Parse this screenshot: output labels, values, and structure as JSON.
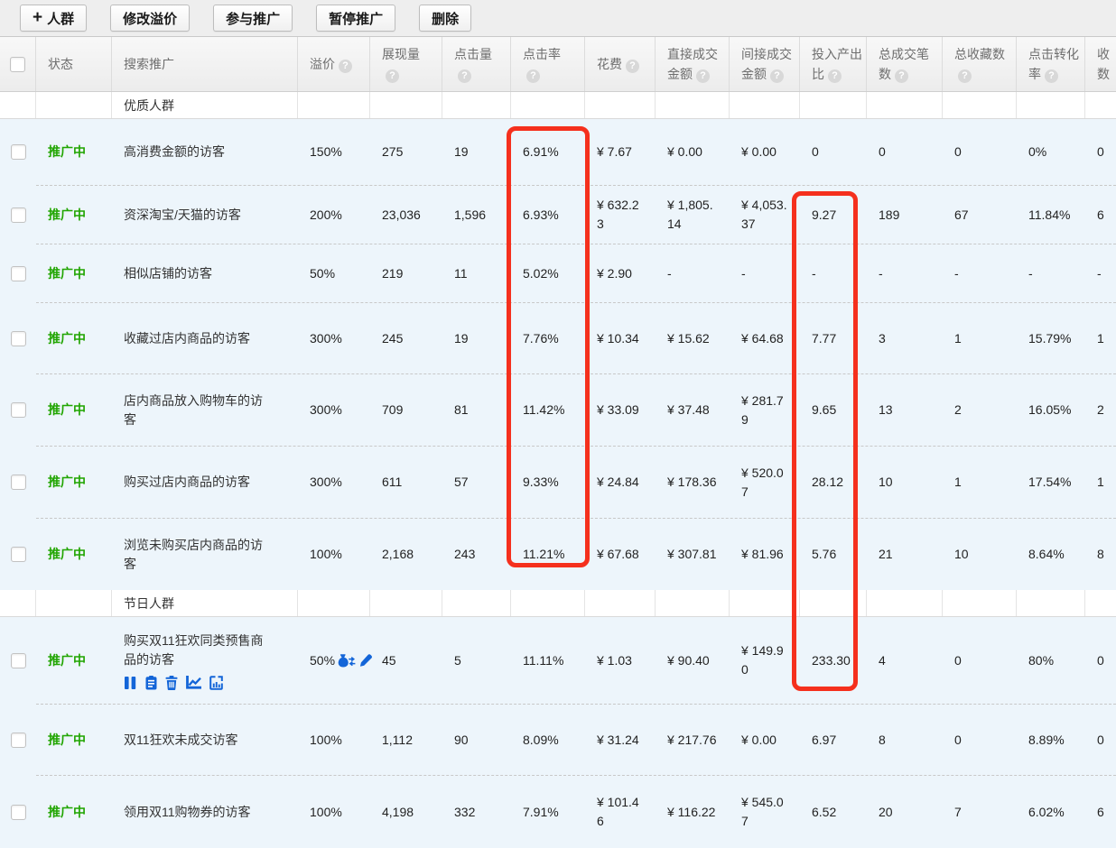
{
  "toolbar": {
    "buttons": [
      {
        "id": "add-crowd",
        "label": "人群",
        "icon": "plus"
      },
      {
        "id": "modify-premium",
        "label": "修改溢价"
      },
      {
        "id": "join-promotion",
        "label": "参与推广"
      },
      {
        "id": "pause-promotion",
        "label": "暂停推广"
      },
      {
        "id": "delete",
        "label": "删除"
      }
    ]
  },
  "icons": {
    "plus": "+",
    "help": "?",
    "row_action_icons": [
      "pause",
      "note",
      "delete",
      "trend",
      "report"
    ],
    "premium_icons": [
      "money-bag",
      "edit"
    ]
  },
  "table": {
    "columns": [
      {
        "key": "check"
      },
      {
        "key": "status",
        "l1": "状态"
      },
      {
        "key": "name",
        "l1": "搜索推广"
      },
      {
        "key": "premium",
        "l1": "溢价",
        "helpLine": 1
      },
      {
        "key": "impressions",
        "l1": "展现量",
        "l2": "",
        "helpLine": 2
      },
      {
        "key": "clicks",
        "l1": "点击量",
        "l2": "",
        "helpLine": 2
      },
      {
        "key": "ctr",
        "l1": "点击率",
        "l2": "",
        "helpLine": 2
      },
      {
        "key": "cost",
        "l1": "花费",
        "helpLine": 1
      },
      {
        "key": "direct",
        "l1": "直接成交",
        "l2": "金额",
        "helpLine": 2
      },
      {
        "key": "indirect",
        "l1": "间接成交",
        "l2": "金额",
        "helpLine": 2
      },
      {
        "key": "roi",
        "l1": "投入产出",
        "l2": "比",
        "helpLine": 2
      },
      {
        "key": "orders",
        "l1": "总成交笔",
        "l2": "数",
        "helpLine": 2
      },
      {
        "key": "favorites",
        "l1": "总收藏数",
        "l2": "",
        "helpLine": 2
      },
      {
        "key": "conversion",
        "l1": "点击转化",
        "l2": "率",
        "helpLine": 2
      },
      {
        "key": "extra",
        "l1": "收",
        "l2": "数"
      }
    ],
    "rows": [
      {
        "type": "section",
        "label": "优质人群"
      },
      {
        "type": "data",
        "status": "推广中",
        "name": "高消费金额的访客",
        "premium": "150%",
        "impressions": "275",
        "clicks": "19",
        "ctr": "6.91%",
        "cost": "¥ 7.67",
        "direct": "¥ 0.00",
        "indirect": "¥ 0.00",
        "roi": "0",
        "orders": "0",
        "favorites": "0",
        "conversion": "0%",
        "extra": "0"
      },
      {
        "type": "data",
        "status": "推广中",
        "name": "资深淘宝/天猫的访客",
        "premium": "200%",
        "impressions": "23,036",
        "clicks": "1,596",
        "ctr": "6.93%",
        "cost": "¥ 632.23",
        "direct": "¥ 1,805.14",
        "indirect": "¥ 4,053.37",
        "roi": "9.27",
        "orders": "189",
        "favorites": "67",
        "conversion": "11.84%",
        "extra": "6"
      },
      {
        "type": "data",
        "status": "推广中",
        "name": "相似店铺的访客",
        "premium": "50%",
        "impressions": "219",
        "clicks": "11",
        "ctr": "5.02%",
        "cost": "¥ 2.90",
        "direct": "-",
        "indirect": "-",
        "roi": "-",
        "orders": "-",
        "favorites": "-",
        "conversion": "-",
        "extra": "-"
      },
      {
        "type": "data",
        "status": "推广中",
        "name": "收藏过店内商品的访客",
        "premium": "300%",
        "impressions": "245",
        "clicks": "19",
        "ctr": "7.76%",
        "cost": "¥ 10.34",
        "direct": "¥ 15.62",
        "indirect": "¥ 64.68",
        "roi": "7.77",
        "orders": "3",
        "favorites": "1",
        "conversion": "15.79%",
        "extra": "1"
      },
      {
        "type": "data",
        "status": "推广中",
        "name": "店内商品放入购物车的访客",
        "premium": "300%",
        "impressions": "709",
        "clicks": "81",
        "ctr": "11.42%",
        "cost": "¥ 33.09",
        "direct": "¥ 37.48",
        "indirect": "¥ 281.79",
        "roi": "9.65",
        "orders": "13",
        "favorites": "2",
        "conversion": "16.05%",
        "extra": "2"
      },
      {
        "type": "data",
        "status": "推广中",
        "name": "购买过店内商品的访客",
        "premium": "300%",
        "impressions": "611",
        "clicks": "57",
        "ctr": "9.33%",
        "cost": "¥ 24.84",
        "direct": "¥ 178.36",
        "indirect": "¥ 520.07",
        "roi": "28.12",
        "orders": "10",
        "favorites": "1",
        "conversion": "17.54%",
        "extra": "1"
      },
      {
        "type": "data",
        "status": "推广中",
        "name": "浏览未购买店内商品的访客",
        "premium": "100%",
        "impressions": "2,168",
        "clicks": "243",
        "ctr": "11.21%",
        "cost": "¥ 67.68",
        "direct": "¥ 307.81",
        "indirect": "¥ 81.96",
        "roi": "5.76",
        "orders": "21",
        "favorites": "10",
        "conversion": "8.64%",
        "extra": "8"
      },
      {
        "type": "section",
        "label": "节日人群"
      },
      {
        "type": "data",
        "status": "推广中",
        "name": "购买双11狂欢同类预售商品的访客",
        "premium": "50%",
        "premium_icons": [
          "money-bag",
          "edit"
        ],
        "action_icons": [
          "pause",
          "note",
          "delete",
          "trend",
          "report"
        ],
        "impressions": "45",
        "clicks": "5",
        "ctr": "11.11%",
        "cost": "¥ 1.03",
        "direct": "¥ 90.40",
        "indirect": "¥ 149.90",
        "roi": "233.30",
        "orders": "4",
        "favorites": "0",
        "conversion": "80%",
        "extra": "0"
      },
      {
        "type": "data",
        "status": "推广中",
        "name": "双11狂欢未成交访客",
        "premium": "100%",
        "impressions": "1,112",
        "clicks": "90",
        "ctr": "8.09%",
        "cost": "¥ 31.24",
        "direct": "¥ 217.76",
        "indirect": "¥ 0.00",
        "roi": "6.97",
        "orders": "8",
        "favorites": "0",
        "conversion": "8.89%",
        "extra": "0"
      },
      {
        "type": "data",
        "status": "推广中",
        "name": "领用双11购物券的访客",
        "premium": "100%",
        "impressions": "4,198",
        "clicks": "332",
        "ctr": "7.91%",
        "cost": "¥ 101.46",
        "direct": "¥ 116.22",
        "indirect": "¥ 545.07",
        "roi": "6.52",
        "orders": "20",
        "favorites": "7",
        "conversion": "6.02%",
        "extra": "6"
      }
    ]
  },
  "annotations": {
    "color": "#f5301d",
    "boxes": [
      {
        "id": "ctr",
        "column": "点击率"
      },
      {
        "id": "roi",
        "column": "投入产出比"
      }
    ]
  },
  "colors": {
    "status_green": "#21a501",
    "icon_blue": "#1365d8",
    "highlight_red": "#f5301d",
    "row_bg": "#edf5fb",
    "header_bg": "#f2f2f2"
  }
}
